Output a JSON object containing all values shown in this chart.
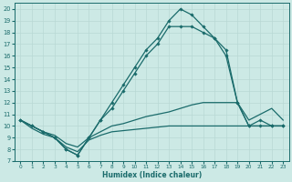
{
  "xlabel": "Humidex (Indice chaleur)",
  "xlim": [
    -0.5,
    23.5
  ],
  "ylim": [
    7,
    20.5
  ],
  "yticks": [
    7,
    8,
    9,
    10,
    11,
    12,
    13,
    14,
    15,
    16,
    17,
    18,
    19,
    20
  ],
  "xticks": [
    0,
    1,
    2,
    3,
    4,
    5,
    6,
    7,
    8,
    9,
    10,
    11,
    12,
    13,
    14,
    15,
    16,
    17,
    18,
    19,
    20,
    21,
    22,
    23
  ],
  "bg_color": "#cce9e5",
  "line_color": "#1a6b6b",
  "grid_color": "#b8d8d4",
  "lines": [
    {
      "x": [
        0,
        1,
        2,
        3,
        4,
        5,
        6,
        7,
        8,
        9,
        10,
        11,
        12,
        13,
        14,
        15,
        16,
        17,
        18,
        19,
        20,
        21,
        22,
        23
      ],
      "y": [
        10.5,
        10.0,
        9.5,
        9.0,
        8.0,
        7.5,
        9.0,
        10.5,
        12.0,
        13.5,
        15.0,
        16.5,
        17.5,
        19.0,
        20.0,
        19.5,
        18.5,
        17.5,
        16.5,
        12.0,
        10.0,
        10.0,
        10.0,
        10.0
      ],
      "marker": true
    },
    {
      "x": [
        0,
        1,
        2,
        3,
        4,
        5,
        6,
        7,
        8,
        9,
        10,
        11,
        12,
        13,
        14,
        15,
        16,
        17,
        18,
        19,
        20,
        21,
        22,
        23
      ],
      "y": [
        10.5,
        10.0,
        9.5,
        9.0,
        8.0,
        7.5,
        9.0,
        10.5,
        11.5,
        13.0,
        14.5,
        16.0,
        17.0,
        18.5,
        18.5,
        18.5,
        18.0,
        17.5,
        16.0,
        12.0,
        10.0,
        10.5,
        10.0,
        10.0
      ],
      "marker": true
    },
    {
      "x": [
        0,
        1,
        2,
        3,
        4,
        5,
        6,
        7,
        8,
        9,
        10,
        11,
        12,
        13,
        14,
        15,
        16,
        17,
        18,
        19,
        20,
        21,
        22,
        23
      ],
      "y": [
        10.5,
        10.0,
        9.5,
        9.2,
        8.5,
        8.2,
        9.0,
        9.5,
        10.0,
        10.2,
        10.5,
        10.8,
        11.0,
        11.2,
        11.5,
        11.8,
        12.0,
        12.0,
        12.0,
        12.0,
        10.5,
        11.0,
        11.5,
        10.5
      ],
      "marker": false
    },
    {
      "x": [
        0,
        1,
        2,
        3,
        4,
        5,
        6,
        7,
        8,
        9,
        10,
        11,
        12,
        13,
        14,
        15,
        16,
        17,
        18,
        19,
        20,
        21,
        22,
        23
      ],
      "y": [
        10.5,
        9.8,
        9.3,
        9.0,
        8.2,
        7.8,
        8.8,
        9.2,
        9.5,
        9.6,
        9.7,
        9.8,
        9.9,
        10.0,
        10.0,
        10.0,
        10.0,
        10.0,
        10.0,
        10.0,
        10.0,
        10.0,
        10.0,
        10.0
      ],
      "marker": false
    }
  ]
}
